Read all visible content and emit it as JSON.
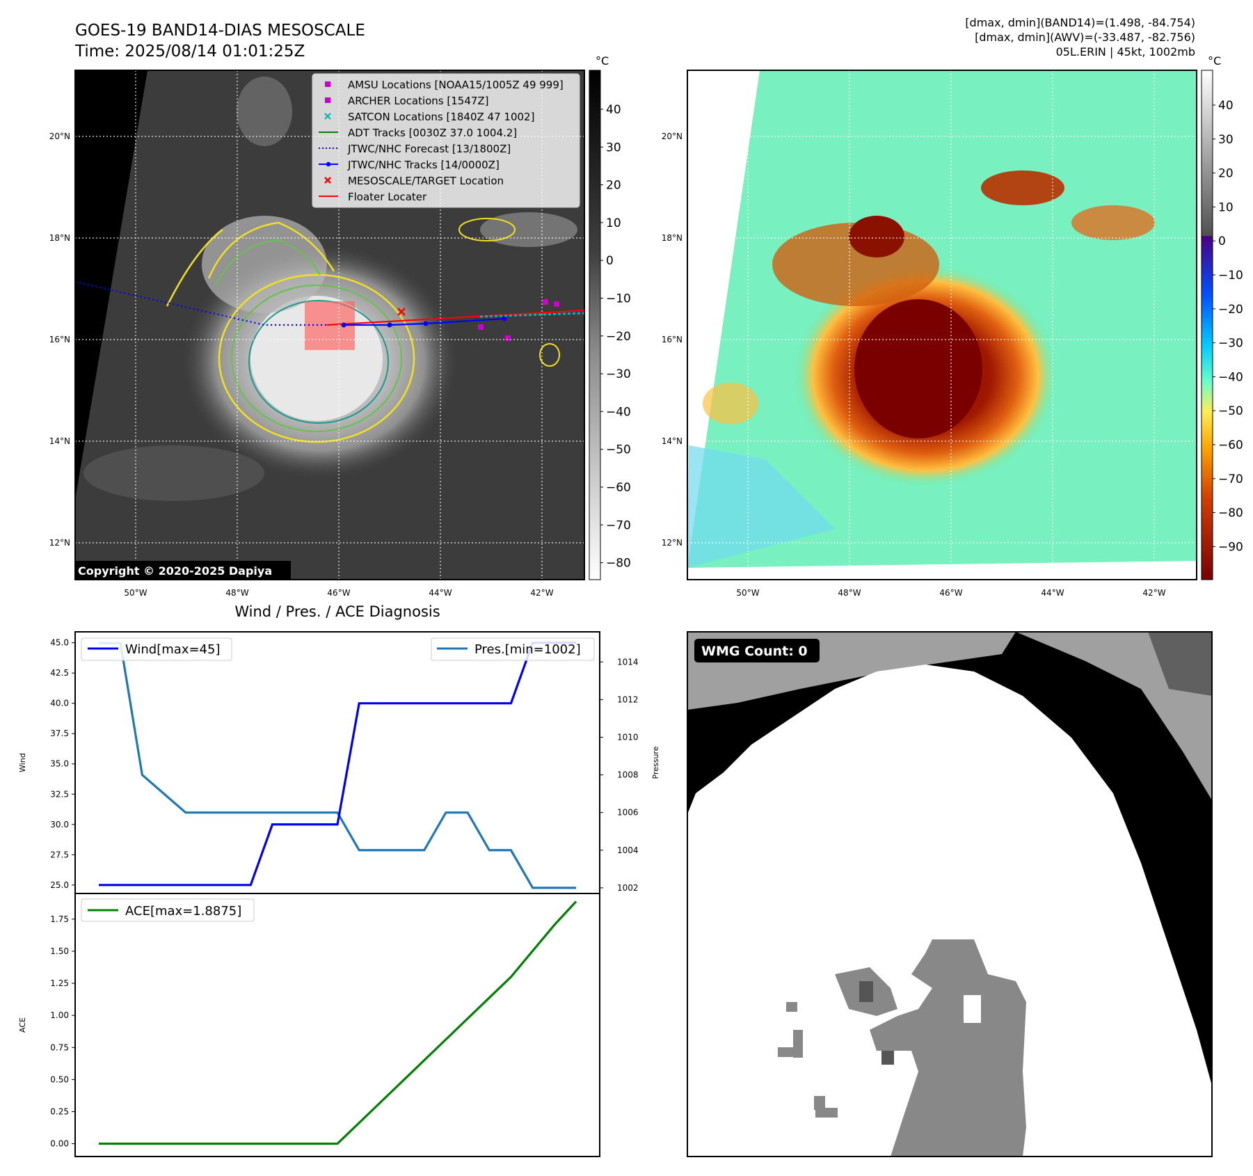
{
  "header": {
    "title_line1": "GOES-19 BAND14-DIAS MESOSCALE",
    "title_line2": "Time: 2025/08/14 01:01:25Z",
    "info_line1": "[dmax, dmin](BAND14)=(1.498, -84.754)",
    "info_line2": "[dmax, dmin](AWV)=(-33.487, -82.756)",
    "info_line3": "05L.ERIN | 45kt, 1002mb"
  },
  "copyright": "Copyright © 2020-2025 Dapiya",
  "colorbar_unit": "°C",
  "colors": {
    "wind": "#0000ee",
    "pressure": "#1f77b4",
    "ace": "#008000",
    "forecast": "#0000ff",
    "locater": "#ff0000",
    "amsu": "#cc00cc",
    "satcon": "#00b5b5",
    "contour_yellow": "#f0e020",
    "contour_green": "#66c24a",
    "contour_teal": "#1a9a8a"
  },
  "map_axes": {
    "lon_ticks": [
      "50°W",
      "48°W",
      "46°W",
      "44°W",
      "42°W"
    ],
    "lat_ticks": [
      "20°N",
      "18°N",
      "16°N",
      "14°N",
      "12°N"
    ]
  },
  "legend": [
    {
      "label": "AMSU Locations [NOAA15/1005Z 49 999]",
      "icon": "square-marker-icon"
    },
    {
      "label": "ARCHER Locations [1547Z]",
      "icon": "square-marker-icon"
    },
    {
      "label": "SATCON Locations [1840Z 47 1002]",
      "icon": "x-marker-icon"
    },
    {
      "label": "ADT Tracks [0030Z 37.0 1004.2]",
      "icon": "green-line-icon"
    },
    {
      "label": "JTWC/NHC Forecast [13/1800Z]",
      "icon": "dotted-line-icon"
    },
    {
      "label": "JTWC/NHC Tracks [14/0000Z]",
      "icon": "dot-line-icon"
    },
    {
      "label": "MESOSCALE/TARGET Location",
      "icon": "red-x-icon"
    },
    {
      "label": "Floater Locater",
      "icon": "red-line-icon"
    }
  ],
  "colorbar1_ticks": [
    "40",
    "30",
    "20",
    "10",
    "0",
    "−10",
    "−20",
    "−30",
    "−40",
    "−50",
    "−60",
    "−70",
    "−80"
  ],
  "colorbar2_ticks": [
    "40",
    "30",
    "20",
    "10",
    "0",
    "−10",
    "−20",
    "−30",
    "−40",
    "−50",
    "−60",
    "−70",
    "−80",
    "−90"
  ],
  "wmg": {
    "count_label": "WMG Count: 0"
  },
  "chart_data": [
    {
      "type": "line",
      "title": "Wind / Pres. / ACE Diagnosis",
      "x": [
        0,
        1,
        2,
        3,
        4,
        5,
        6,
        7,
        8,
        9,
        10,
        11,
        12,
        13,
        14,
        15,
        16,
        17,
        18,
        19,
        20,
        21,
        22
      ],
      "series": [
        {
          "name": "Wind[max=45]",
          "axis": "left",
          "values": [
            25,
            25,
            25,
            25,
            25,
            25,
            25,
            25,
            30,
            30,
            30,
            30,
            40,
            40,
            40,
            40,
            40,
            40,
            40,
            40,
            45,
            45,
            45
          ]
        },
        {
          "name": "Pres.[min=1002]",
          "axis": "right",
          "values": [
            1015,
            1015,
            1008,
            1007,
            1006,
            1006,
            1006,
            1006,
            1006,
            1006,
            1006,
            1006,
            1004,
            1004,
            1004,
            1004,
            1006,
            1006,
            1004,
            1004,
            1002,
            1002,
            1002
          ]
        }
      ],
      "ylabel": "Wind",
      "ylabel_right": "Pressure",
      "ylim": [
        24.3,
        45.9
      ],
      "ylim_right": [
        1001.7,
        1015.6
      ],
      "yticks": [
        "45.0",
        "42.5",
        "40.0",
        "37.5",
        "35.0",
        "32.5",
        "30.0",
        "27.5",
        "25.0"
      ],
      "yticks_right": [
        "1014",
        "1012",
        "1010",
        "1008",
        "1006",
        "1004",
        "1002"
      ],
      "legend_placement": "top-left and top-right"
    },
    {
      "type": "line",
      "x": [
        0,
        1,
        2,
        3,
        4,
        5,
        6,
        7,
        8,
        9,
        10,
        11,
        12,
        13,
        14,
        15,
        16,
        17,
        18,
        19,
        20,
        21,
        22
      ],
      "series": [
        {
          "name": "ACE[max=1.8875]",
          "values": [
            0,
            0,
            0,
            0,
            0,
            0,
            0,
            0,
            0,
            0,
            0,
            0,
            0.1625,
            0.325,
            0.4875,
            0.65,
            0.8125,
            0.975,
            1.1375,
            1.3,
            1.5025,
            1.705,
            1.8875
          ]
        }
      ],
      "ylabel": "ACE",
      "ylim": [
        -0.1,
        1.95
      ],
      "yticks": [
        "1.75",
        "1.50",
        "1.25",
        "1.00",
        "0.75",
        "0.50",
        "0.25",
        "0.00"
      ],
      "legend_placement": "top-left"
    }
  ]
}
